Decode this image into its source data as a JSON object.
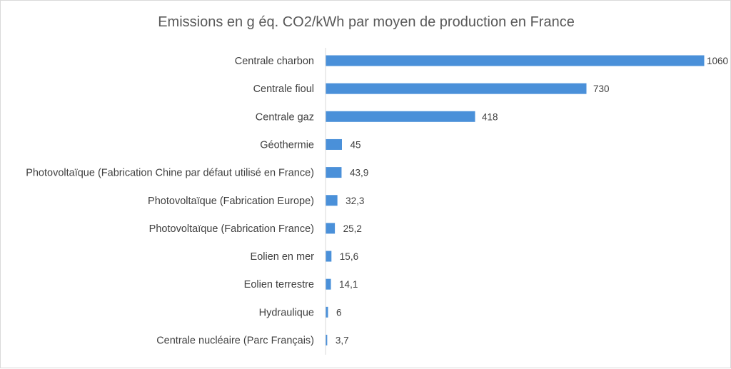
{
  "chart_data": {
    "type": "bar",
    "orientation": "horizontal",
    "title": "Emissions  en g éq. CO2/kWh par moyen de production en France",
    "xlabel": "",
    "ylabel": "",
    "categories": [
      "Centrale charbon",
      "Centrale fioul",
      "Centrale gaz",
      "Géothermie",
      "Photovoltaïque (Fabrication Chine par défaut utilisé en France)",
      "Photovoltaïque (Fabrication Europe)",
      "Photovoltaïque (Fabrication France)",
      "Eolien en mer",
      "Eolien terrestre",
      "Hydraulique",
      "Centrale nucléaire (Parc Français)"
    ],
    "values": [
      1060,
      730,
      418,
      45,
      43.9,
      32.3,
      25.2,
      15.6,
      14.1,
      6,
      3.7
    ],
    "value_labels": [
      "1060",
      "730",
      "418",
      "45",
      "43,9",
      "32,3",
      "25,2",
      "15,6",
      "14,1",
      "6",
      "3,7"
    ],
    "xlim": [
      0,
      1060
    ],
    "grid": false,
    "legend": "none",
    "bar_color": "#4a90d9",
    "axis_color": "#d9d9d9"
  }
}
